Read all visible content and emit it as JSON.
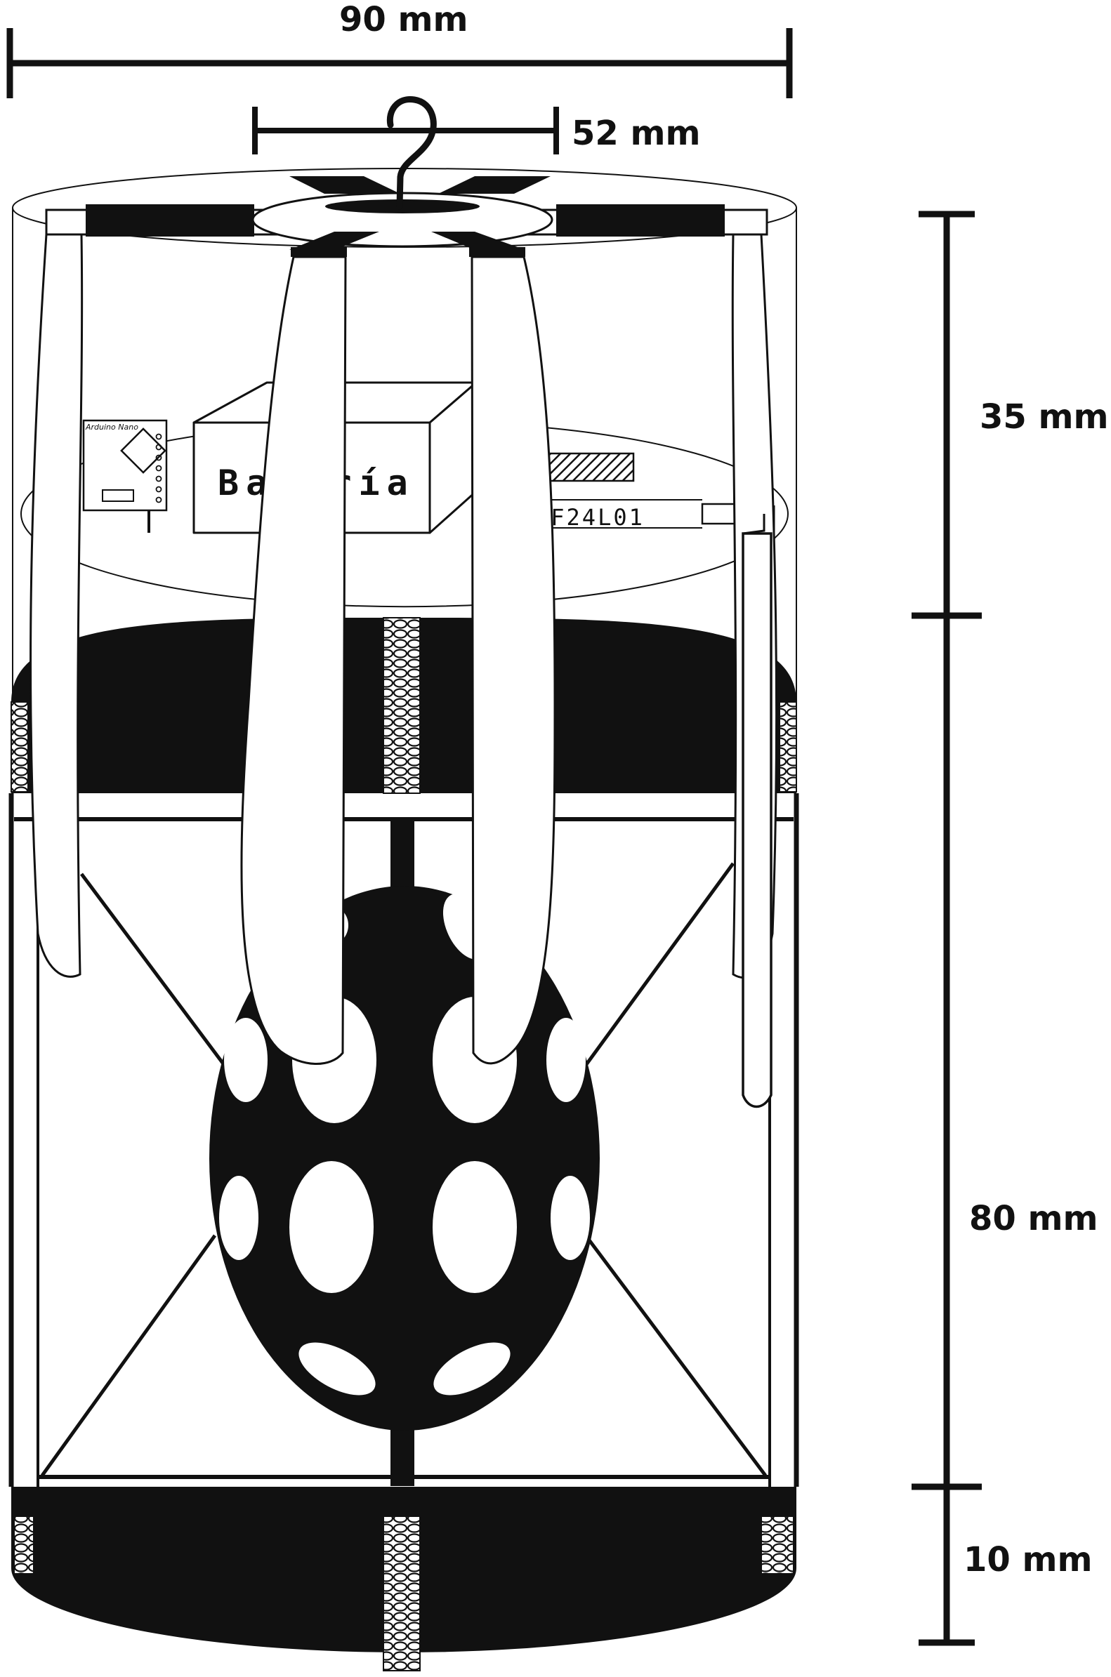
{
  "dimensions": {
    "width_outer": "90 mm",
    "width_inner": "52 mm",
    "height_top": "35 mm",
    "height_middle": "80 mm",
    "height_bottom": "10 mm"
  },
  "components": {
    "battery_label": "Batería",
    "radio_label": "RF24L01",
    "board_label": "Arduino Nano"
  },
  "colors": {
    "ink": "#111111",
    "paper": "#ffffff"
  }
}
